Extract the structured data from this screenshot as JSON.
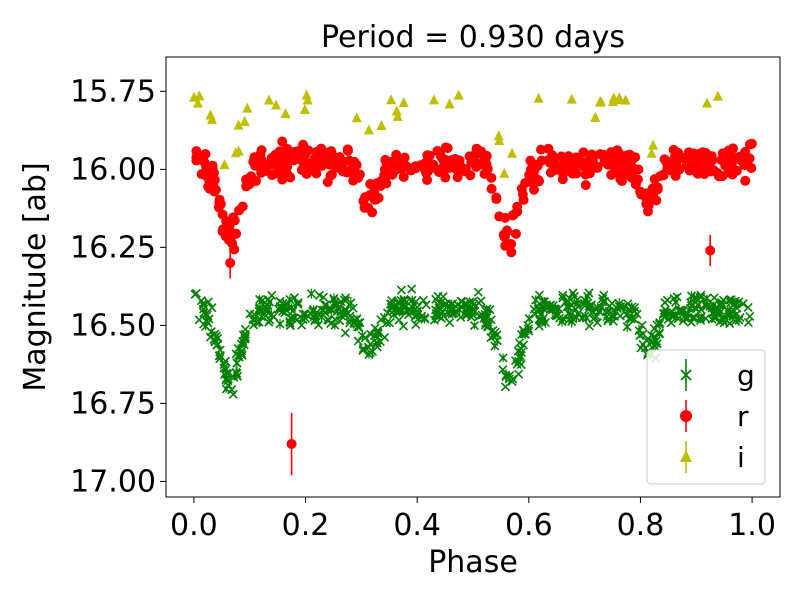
{
  "chart_data": {
    "type": "scatter",
    "title": "Period = 0.930 days",
    "xlabel": "Phase",
    "ylabel": "Magnitude [ab]",
    "xlim": [
      -0.05,
      1.05
    ],
    "ylim": [
      17.05,
      15.64
    ],
    "y_inverted": true,
    "x_ticks": [
      0.0,
      0.2,
      0.4,
      0.6,
      0.8,
      1.0
    ],
    "x_tick_labels": [
      "0.0",
      "0.2",
      "0.4",
      "0.6",
      "0.8",
      "1.0"
    ],
    "y_ticks": [
      15.75,
      16.0,
      16.25,
      16.5,
      16.75,
      17.0
    ],
    "y_tick_labels": [
      "15.75",
      "16.00",
      "16.25",
      "16.50",
      "16.75",
      "17.00"
    ],
    "grid": false,
    "legend_placement": "bottom-right",
    "eclipses": [
      {
        "phase": 0.065,
        "depth": 0.24,
        "width": 0.018
      },
      {
        "phase": 0.315,
        "depth": 0.13,
        "width": 0.015
      },
      {
        "phase": 0.565,
        "depth": 0.24,
        "width": 0.018
      },
      {
        "phase": 0.815,
        "depth": 0.13,
        "width": 0.015
      }
    ],
    "series": [
      {
        "name": "g",
        "marker": "x",
        "color": "#008000",
        "baseline": 16.45,
        "n_points": 620,
        "scatter": 0.025,
        "outliers": []
      },
      {
        "name": "r",
        "marker": "circle",
        "color": "#ff0000",
        "baseline": 15.98,
        "n_points": 520,
        "scatter": 0.025,
        "outliers": [
          {
            "x": 0.065,
            "y": 16.3,
            "err": 0.05
          },
          {
            "x": 0.175,
            "y": 16.88,
            "err": 0.1
          },
          {
            "x": 0.925,
            "y": 16.26,
            "err": 0.05
          }
        ]
      },
      {
        "name": "i",
        "marker": "triangle",
        "color": "#bfbf00",
        "baseline": 15.79,
        "n_points": 42,
        "scatter": 0.02,
        "outliers": [
          {
            "x": 0.08,
            "y": 15.86,
            "err": 0.01
          },
          {
            "x": 0.57,
            "y": 15.95,
            "err": 0.01
          },
          {
            "x": 0.82,
            "y": 15.95,
            "err": 0.01
          }
        ]
      }
    ]
  }
}
